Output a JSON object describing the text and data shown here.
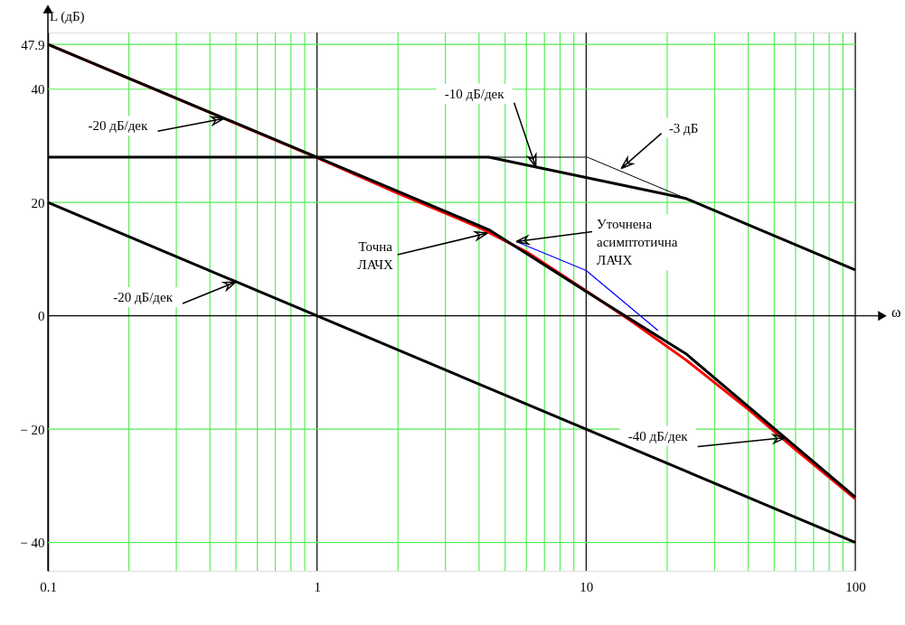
{
  "chart_data": {
    "type": "line",
    "ylabel": "L (дБ)",
    "xlabel": "ω",
    "log": "x",
    "xlim": [
      0.1,
      100
    ],
    "ylim": [
      -45,
      50
    ],
    "xticks": [
      0.1,
      {
        "value": 0.2,
        "label": null
      },
      {
        "value": 0.3,
        "label": null
      },
      {
        "value": 0.4,
        "label": null
      },
      {
        "value": 0.5,
        "label": null
      },
      {
        "value": 0.6,
        "label": null
      },
      {
        "value": 0.7,
        "label": null
      },
      {
        "value": 0.8,
        "label": null
      },
      {
        "value": 0.9,
        "label": null
      },
      1,
      {
        "value": 2,
        "label": null
      },
      {
        "value": 3,
        "label": null
      },
      {
        "value": 4,
        "label": null
      },
      {
        "value": 5,
        "label": null
      },
      {
        "value": 6,
        "label": null
      },
      {
        "value": 7,
        "label": null
      },
      {
        "value": 8,
        "label": null
      },
      {
        "value": 9,
        "label": null
      },
      10,
      {
        "value": 20,
        "label": null
      },
      {
        "value": 30,
        "label": null
      },
      {
        "value": 40,
        "label": null
      },
      {
        "value": 50,
        "label": null
      },
      {
        "value": 60,
        "label": null
      },
      {
        "value": 70,
        "label": null
      },
      {
        "value": 80,
        "label": null
      },
      {
        "value": 90,
        "label": null
      },
      100
    ],
    "yticks": [
      47.9,
      40,
      20,
      0,
      {
        "value": -20,
        "label": "− 20"
      },
      {
        "value": -40,
        "label": "− 40"
      }
    ],
    "grid": true,
    "marker": "none",
    "line_style": "solid",
    "series": [
      {
        "color": "#ff0000",
        "x": [
          0.1,
          1,
          2,
          4,
          6,
          10,
          15,
          23.5,
          40,
          60,
          100
        ],
        "values": [
          47.9,
          27.9,
          21.6,
          15.6,
          11.3,
          4.4,
          -1.2,
          -7.8,
          -16.5,
          -23.6,
          -32.3
        ]
      },
      {
        "color": "#0000ff",
        "x": [
          5.5,
          10,
          18.5
        ],
        "values": [
          13.1,
          8.0,
          -2.6
        ]
      },
      {
        "color": "#000000",
        "x": [
          0.1,
          1,
          4.35,
          10,
          23.5,
          100
        ],
        "values": [
          47.9,
          28,
          15.2,
          4.3,
          -6.7,
          -32
        ]
      },
      {
        "color": "#000000",
        "x": [
          0.1,
          100
        ],
        "values": [
          20,
          -40
        ]
      },
      {
        "color": "#000000",
        "x": [
          0.1,
          4.35,
          23.5,
          100
        ],
        "values": [
          28,
          28,
          20.7,
          8.1
        ]
      },
      {
        "color": "#000000",
        "x": [
          4.35,
          10.1,
          23.5
        ],
        "values": [
          28,
          28,
          20.7
        ]
      }
    ],
    "annotations": [
      {
        "text": "-20 дБ/дек",
        "x": 0.45,
        "y": 34.8
      },
      {
        "text": "-10 дБ/дек",
        "x": 6.5,
        "y": 26.3
      },
      {
        "text": "-3 дБ",
        "x": 13.5,
        "y": 26
      },
      {
        "text": "Уточнена\nасимптотична\nЛАЧХ",
        "x": 5.5,
        "y": 13.1
      },
      {
        "text": "Точна\nЛАЧХ",
        "x": 4.3,
        "y": 14.6
      },
      {
        "text": "-20 дБ/дек",
        "x": 0.5,
        "y": 6.0
      },
      {
        "text": "-40 дБ/дек",
        "x": 55,
        "y": -21.5
      }
    ]
  }
}
